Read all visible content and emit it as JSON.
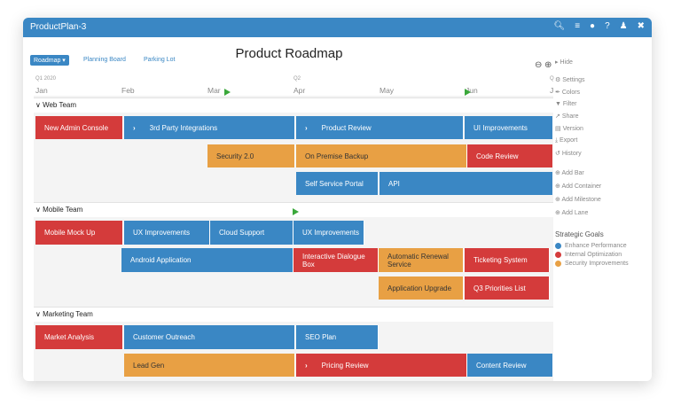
{
  "app": {
    "title": "ProductPlan-3",
    "toolbar_icons": [
      "search-icon",
      "list-icon",
      "bell-icon",
      "help-icon",
      "user-icon",
      "expand-icon"
    ]
  },
  "header": {
    "title": "Product Roadmap",
    "view_button": "Roadmap ▾",
    "planning_board": "Planning Board",
    "parking_lot": "Parking Lot"
  },
  "timeline": {
    "quarters": [
      "Q1 2020",
      "Q2",
      "Q"
    ],
    "months": [
      "Jan",
      "Feb",
      "Mar",
      "Apr",
      "May",
      "Jun",
      "J"
    ]
  },
  "lanes": [
    {
      "name": "Web Team",
      "bars": [
        {
          "label": "New Admin Console",
          "color": "red"
        },
        {
          "label": "3rd Party Integrations",
          "color": "blue",
          "chevron": true
        },
        {
          "label": "Product Review",
          "color": "blue",
          "chevron": true
        },
        {
          "label": "UI Improvements",
          "color": "blue"
        },
        {
          "label": "Security 2.0",
          "color": "orange"
        },
        {
          "label": "On Premise Backup",
          "color": "orange"
        },
        {
          "label": "Code Review",
          "color": "red"
        },
        {
          "label": "Self Service Portal",
          "color": "blue"
        },
        {
          "label": "API",
          "color": "blue"
        }
      ]
    },
    {
      "name": "Mobile Team",
      "bars": [
        {
          "label": "Mobile Mock Up",
          "color": "red"
        },
        {
          "label": "UX Improvements",
          "color": "blue"
        },
        {
          "label": "Cloud Support",
          "color": "blue"
        },
        {
          "label": "UX Improvements",
          "color": "blue"
        },
        {
          "label": "Android Application",
          "color": "blue"
        },
        {
          "label": "Interactive Dialogue Box",
          "color": "red"
        },
        {
          "label": "Automatic Renewal Service",
          "color": "orange"
        },
        {
          "label": "Ticketing System",
          "color": "red"
        },
        {
          "label": "Application Upgrade",
          "color": "orange"
        },
        {
          "label": "Q3 Priorities List",
          "color": "red"
        }
      ]
    },
    {
      "name": "Marketing Team",
      "bars": [
        {
          "label": "Market Analysis",
          "color": "red"
        },
        {
          "label": "Customer Outreach",
          "color": "blue"
        },
        {
          "label": "SEO Plan",
          "color": "blue"
        },
        {
          "label": "Lead Gen",
          "color": "orange"
        },
        {
          "label": "Pricing Review",
          "color": "red",
          "chevron": true
        },
        {
          "label": "Content Review",
          "color": "blue"
        }
      ]
    }
  ],
  "sidebar": {
    "hide": "Hide",
    "menu": [
      "Settings",
      "Colors",
      "Filter",
      "Share",
      "Version",
      "Export",
      "History"
    ],
    "add": [
      "Add Bar",
      "Add Container",
      "Add Milestone",
      "Add Lane"
    ],
    "goals_title": "Strategic Goals",
    "goals": [
      {
        "label": "Enhance Performance",
        "color": "#3a87c4"
      },
      {
        "label": "Internal Optimization",
        "color": "#d43b3b"
      },
      {
        "label": "Security Improvements",
        "color": "#e8a044"
      }
    ]
  },
  "colors": {
    "blue": "#3a87c4",
    "red": "#d43b3b",
    "orange": "#e8a044",
    "milestone": "#3aa83a"
  }
}
